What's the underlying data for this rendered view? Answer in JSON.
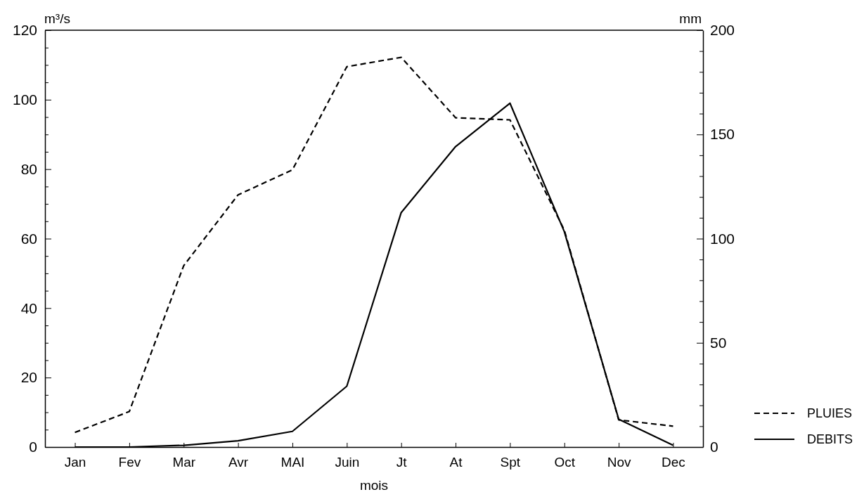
{
  "chart_data": {
    "type": "line",
    "categories": [
      "Jan",
      "Fev",
      "Mar",
      "Avr",
      "MAI",
      "Juin",
      "Jt",
      "At",
      "Spt",
      "Oct",
      "Nov",
      "Dec"
    ],
    "series": [
      {
        "name": "PLUIES",
        "color": "#000000",
        "axis": "y2",
        "line_style": "dashed",
        "values": [
          7,
          17,
          87,
          121,
          133,
          182.5,
          187,
          158,
          157,
          104,
          13,
          10
        ]
      },
      {
        "name": "DEBITS",
        "color": "#000000",
        "axis": "y",
        "line_style": "solid",
        "values": [
          0,
          0,
          0.5,
          1.8,
          4.5,
          17.5,
          67.5,
          86.5,
          99,
          62,
          8,
          0.5
        ]
      }
    ],
    "xlabel": "mois",
    "ylabel": "m³/s",
    "y2label": "mm",
    "ylim": [
      0,
      120
    ],
    "yticks": [
      0,
      {
        "value": 5,
        "label": null
      },
      {
        "value": 10,
        "label": null
      },
      {
        "value": 15,
        "label": null
      },
      20,
      {
        "value": 25,
        "label": null
      },
      {
        "value": 30,
        "label": null
      },
      {
        "value": 35,
        "label": null
      },
      40,
      {
        "value": 45,
        "label": null
      },
      {
        "value": 50,
        "label": null
      },
      {
        "value": 55,
        "label": null
      },
      60,
      {
        "value": 65,
        "label": null
      },
      {
        "value": 70,
        "label": null
      },
      {
        "value": 75,
        "label": null
      },
      80,
      {
        "value": 85,
        "label": null
      },
      {
        "value": 90,
        "label": null
      },
      {
        "value": 95,
        "label": null
      },
      100,
      {
        "value": 105,
        "label": null
      },
      {
        "value": 110,
        "label": null
      },
      {
        "value": 115,
        "label": null
      },
      120
    ],
    "y2lim": [
      0,
      200
    ],
    "y2ticks": [
      0,
      {
        "value": 10,
        "label": null
      },
      {
        "value": 20,
        "label": null
      },
      {
        "value": 30,
        "label": null
      },
      {
        "value": 40,
        "label": null
      },
      50,
      {
        "value": 60,
        "label": null
      },
      {
        "value": 70,
        "label": null
      },
      {
        "value": 80,
        "label": null
      },
      {
        "value": 90,
        "label": null
      },
      100,
      {
        "value": 110,
        "label": null
      },
      {
        "value": 120,
        "label": null
      },
      {
        "value": 130,
        "label": null
      },
      {
        "value": 140,
        "label": null
      },
      150,
      {
        "value": 160,
        "label": null
      },
      {
        "value": 170,
        "label": null
      },
      {
        "value": 180,
        "label": null
      },
      {
        "value": 190,
        "label": null
      },
      200
    ],
    "legend": "bottom right"
  }
}
